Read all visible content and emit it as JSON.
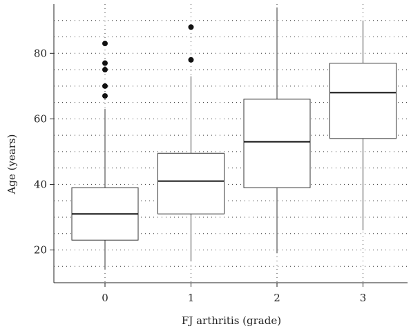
{
  "chart_data": {
    "type": "box",
    "xlabel": "FJ arthritis (grade)",
    "ylabel": "Age (years)",
    "categories": [
      "0",
      "1",
      "2",
      "3"
    ],
    "yticks": [
      20,
      40,
      60,
      80
    ],
    "ylim": [
      10,
      95
    ],
    "grid": "dotted",
    "boxes": [
      {
        "category": "0",
        "whisker_low": 14,
        "q1": 23,
        "median": 31,
        "q3": 39,
        "whisker_high": 63,
        "outliers": [
          67,
          70,
          75,
          77,
          83
        ]
      },
      {
        "category": "1",
        "whisker_low": 16.5,
        "q1": 31,
        "median": 41,
        "q3": 49.5,
        "whisker_high": 73,
        "outliers": [
          78,
          88
        ]
      },
      {
        "category": "2",
        "whisker_low": 19,
        "q1": 39,
        "median": 53,
        "q3": 66,
        "whisker_high": 94,
        "outliers": []
      },
      {
        "category": "3",
        "whisker_low": 26,
        "q1": 54,
        "median": 68,
        "q3": 77,
        "whisker_high": 90,
        "outliers": []
      }
    ]
  }
}
